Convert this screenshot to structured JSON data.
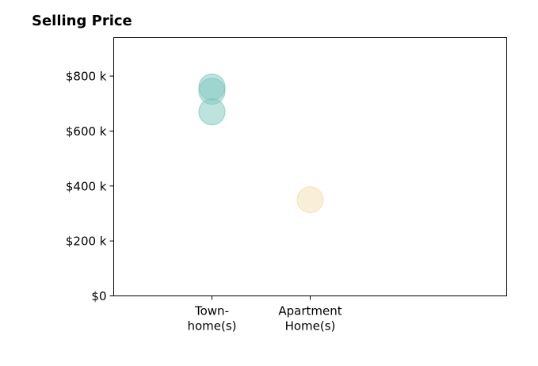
{
  "chart_data": {
    "type": "scatter",
    "title": "Selling Price",
    "xlabel": "",
    "ylabel": "",
    "categories": [
      [
        "Town-",
        "home(s)"
      ],
      [
        "Apartment",
        "Home(s)"
      ]
    ],
    "ylim": [
      0,
      940
    ],
    "yticks": [
      {
        "value": 0,
        "label": "$0"
      },
      {
        "value": 200,
        "label": "$200 k"
      },
      {
        "value": 400,
        "label": "$400 k"
      },
      {
        "value": 600,
        "label": "$600 k"
      },
      {
        "value": 800,
        "label": "$800 k"
      }
    ],
    "points": [
      {
        "category": 0,
        "value": 760,
        "color": "#7ec8bd"
      },
      {
        "category": 0,
        "value": 745,
        "color": "#7ec8bd"
      },
      {
        "category": 0,
        "value": 670,
        "color": "#7ec8bd"
      },
      {
        "category": 1,
        "value": 350,
        "color": "#f3deb0"
      }
    ],
    "grid": false,
    "legend": "none"
  }
}
